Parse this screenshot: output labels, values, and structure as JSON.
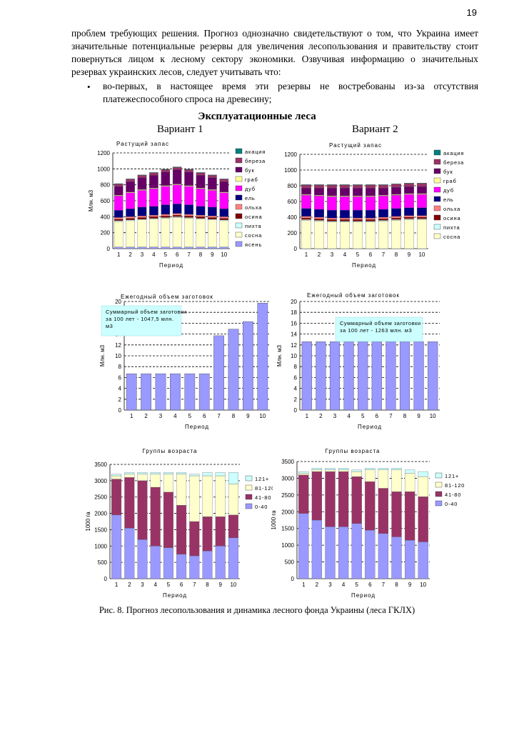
{
  "page_number": "19",
  "paragraph": "проблем требующих решения. Прогноз однозначно свидетельствуют о том, что Украина имеет значительные потенциальные резервы для увеличения лесопользования и правительству стоит повернуться лицом к лесному сектору экономики. Озвучивая информацию о значительных резервах украинских лесов, следует учитывать что:",
  "bullet_marker": "•",
  "bullet_text": "во-первых, в настоящее время эти резервы не востребованы из-за отсутствия платежеспособного спроса на древесину;",
  "figure_title": "Эксплуатационные леса",
  "variant1": "Вариант 1",
  "variant2": "Вариант 2",
  "caption": "Рис. 8. Прогноз лесопользования и динамика лесного фонда Украины (леса ГКЛХ)",
  "chart_data": [
    {
      "id": "stock1",
      "type": "bar",
      "stacked": true,
      "title": "Растущий запас",
      "xlabel": "Период",
      "ylabel": "Млн. м3",
      "ylim": [
        0,
        1200
      ],
      "yticks": [
        0,
        200,
        400,
        600,
        800,
        1000,
        1200
      ],
      "categories": [
        "1",
        "2",
        "3",
        "4",
        "5",
        "6",
        "7",
        "8",
        "9",
        "10"
      ],
      "legend_position": "right",
      "series": [
        {
          "name": "ясень",
          "color": "#9999ff",
          "values": [
            20,
            20,
            20,
            20,
            20,
            20,
            20,
            20,
            20,
            20
          ]
        },
        {
          "name": "сосна",
          "color": "#ffffcc",
          "values": [
            320,
            330,
            340,
            350,
            360,
            370,
            360,
            350,
            340,
            330
          ]
        },
        {
          "name": "пихта",
          "color": "#ccffff",
          "values": [
            10,
            10,
            10,
            10,
            10,
            10,
            10,
            10,
            10,
            10
          ]
        },
        {
          "name": "осина",
          "color": "#800000",
          "values": [
            20,
            20,
            20,
            20,
            20,
            20,
            20,
            20,
            20,
            20
          ]
        },
        {
          "name": "ольха",
          "color": "#ff8080",
          "values": [
            20,
            20,
            20,
            20,
            20,
            20,
            20,
            20,
            20,
            20
          ]
        },
        {
          "name": "ель",
          "color": "#000080",
          "values": [
            90,
            100,
            110,
            110,
            120,
            120,
            120,
            110,
            110,
            100
          ]
        },
        {
          "name": "дуб",
          "color": "#ff00ff",
          "values": [
            180,
            200,
            210,
            220,
            230,
            240,
            230,
            220,
            210,
            200
          ]
        },
        {
          "name": "граб",
          "color": "#ffff99",
          "values": [
            10,
            10,
            10,
            10,
            10,
            10,
            10,
            10,
            10,
            10
          ]
        },
        {
          "name": "бук",
          "color": "#660066",
          "values": [
            110,
            130,
            150,
            160,
            170,
            180,
            170,
            160,
            150,
            130
          ]
        },
        {
          "name": "береза",
          "color": "#993366",
          "values": [
            30,
            30,
            30,
            30,
            30,
            30,
            30,
            30,
            30,
            30
          ]
        },
        {
          "name": "акация",
          "color": "#008080",
          "values": [
            5,
            5,
            5,
            5,
            5,
            5,
            5,
            5,
            5,
            5
          ]
        }
      ]
    },
    {
      "id": "stock2",
      "type": "bar",
      "stacked": true,
      "title": "Растущий запас",
      "xlabel": "Период",
      "ylabel": "",
      "ylim": [
        0,
        1200
      ],
      "yticks": [
        0,
        200,
        400,
        600,
        800,
        1000,
        1200
      ],
      "categories": [
        "1",
        "2",
        "3",
        "4",
        "5",
        "6",
        "7",
        "8",
        "9",
        "10"
      ],
      "legend_position": "right",
      "series": [
        {
          "name": "сосна",
          "color": "#ffffcc",
          "values": [
            360,
            350,
            340,
            340,
            340,
            340,
            350,
            360,
            370,
            370
          ]
        },
        {
          "name": "пихта",
          "color": "#ccffff",
          "values": [
            10,
            10,
            10,
            10,
            10,
            10,
            10,
            10,
            10,
            10
          ]
        },
        {
          "name": "осина",
          "color": "#800000",
          "values": [
            20,
            20,
            20,
            20,
            20,
            20,
            20,
            20,
            20,
            20
          ]
        },
        {
          "name": "ольха",
          "color": "#ff8080",
          "values": [
            20,
            20,
            20,
            20,
            20,
            20,
            20,
            20,
            20,
            20
          ]
        },
        {
          "name": "ель",
          "color": "#000080",
          "values": [
            100,
            100,
            100,
            100,
            100,
            100,
            100,
            100,
            100,
            100
          ]
        },
        {
          "name": "дуб",
          "color": "#ff00ff",
          "values": [
            170,
            170,
            170,
            170,
            170,
            170,
            170,
            170,
            170,
            170
          ]
        },
        {
          "name": "граб",
          "color": "#ffff99",
          "values": [
            10,
            10,
            10,
            10,
            10,
            10,
            10,
            10,
            10,
            10
          ]
        },
        {
          "name": "бук",
          "color": "#660066",
          "values": [
            80,
            90,
            100,
            100,
            100,
            100,
            90,
            90,
            90,
            90
          ]
        },
        {
          "name": "береза",
          "color": "#993366",
          "values": [
            40,
            40,
            40,
            40,
            40,
            40,
            40,
            40,
            40,
            40
          ]
        },
        {
          "name": "акация",
          "color": "#008080",
          "values": [
            5,
            5,
            5,
            5,
            5,
            5,
            5,
            5,
            5,
            5
          ]
        }
      ]
    },
    {
      "id": "harvest1",
      "type": "bar",
      "title": "Ежегодный объем заготовок",
      "xlabel": "Период",
      "ylabel": "Млн. м3",
      "ylim": [
        0,
        20
      ],
      "yticks": [
        0,
        2,
        4,
        6,
        8,
        10,
        12,
        14,
        16,
        18,
        20
      ],
      "categories": [
        "1",
        "2",
        "3",
        "4",
        "5",
        "6",
        "7",
        "8",
        "9",
        "10"
      ],
      "values": [
        6.7,
        6.7,
        6.7,
        6.7,
        6.7,
        6.7,
        13.7,
        14.9,
        16.3,
        19.7
      ],
      "color": "#9999ff",
      "annotation": "Суммарный объем заготовки за 100 лет - 1047,5 млн. м3"
    },
    {
      "id": "harvest2",
      "type": "bar",
      "title": "Ежегодный объем заготовок",
      "xlabel": "Период",
      "ylabel": "Млн. м3",
      "ylim": [
        0,
        20
      ],
      "yticks": [
        0,
        2,
        4,
        6,
        8,
        10,
        12,
        14,
        16,
        18,
        20
      ],
      "categories": [
        "1",
        "2",
        "3",
        "4",
        "5",
        "6",
        "7",
        "8",
        "9",
        "10"
      ],
      "values": [
        12.6,
        12.6,
        12.6,
        12.6,
        12.6,
        12.6,
        12.6,
        12.6,
        12.6,
        12.6
      ],
      "color": "#9999ff",
      "annotation": "Суммарный объем заготовки за 100 лет - 1263 млн. м3"
    },
    {
      "id": "age1",
      "type": "bar",
      "stacked": true,
      "title": "Группы возраста",
      "xlabel": "Период",
      "ylabel": "1000 га",
      "ylim": [
        0,
        3500
      ],
      "yticks": [
        0,
        500,
        1000,
        1500,
        2000,
        2500,
        3000,
        3500
      ],
      "categories": [
        "1",
        "2",
        "3",
        "4",
        "5",
        "6",
        "7",
        "8",
        "9",
        "10"
      ],
      "legend_position": "right",
      "series": [
        {
          "name": "0-40",
          "color": "#9999ff",
          "values": [
            1950,
            1550,
            1200,
            1000,
            950,
            750,
            700,
            850,
            1000,
            1250
          ]
        },
        {
          "name": "41-80",
          "color": "#993366",
          "values": [
            1100,
            1550,
            1800,
            1800,
            1700,
            1500,
            1050,
            1050,
            900,
            700
          ]
        },
        {
          "name": "81-120",
          "color": "#ffffcc",
          "values": [
            100,
            100,
            200,
            400,
            550,
            950,
            1400,
            1250,
            1250,
            950
          ]
        },
        {
          "name": "121+",
          "color": "#ccffff",
          "values": [
            50,
            50,
            50,
            50,
            50,
            50,
            50,
            100,
            100,
            350
          ]
        }
      ]
    },
    {
      "id": "age2",
      "type": "bar",
      "stacked": true,
      "title": "Группы возраста",
      "xlabel": "Период",
      "ylabel": "1000 га",
      "ylim": [
        0,
        3500
      ],
      "yticks": [
        0,
        500,
        1000,
        1500,
        2000,
        2500,
        3000,
        3500
      ],
      "categories": [
        "1",
        "2",
        "3",
        "4",
        "5",
        "6",
        "7",
        "8",
        "9",
        "10"
      ],
      "legend_position": "right",
      "series": [
        {
          "name": "0-40",
          "color": "#9999ff",
          "values": [
            1950,
            1750,
            1550,
            1550,
            1650,
            1450,
            1350,
            1250,
            1150,
            1100
          ]
        },
        {
          "name": "41-80",
          "color": "#993366",
          "values": [
            1150,
            1450,
            1650,
            1650,
            1400,
            1450,
            1350,
            1350,
            1450,
            1350
          ]
        },
        {
          "name": "81-120",
          "color": "#ffffcc",
          "values": [
            50,
            50,
            50,
            50,
            150,
            350,
            550,
            650,
            550,
            600
          ]
        },
        {
          "name": "121+",
          "color": "#ccffff",
          "values": [
            50,
            50,
            50,
            50,
            50,
            50,
            50,
            50,
            100,
            150
          ]
        }
      ]
    }
  ]
}
